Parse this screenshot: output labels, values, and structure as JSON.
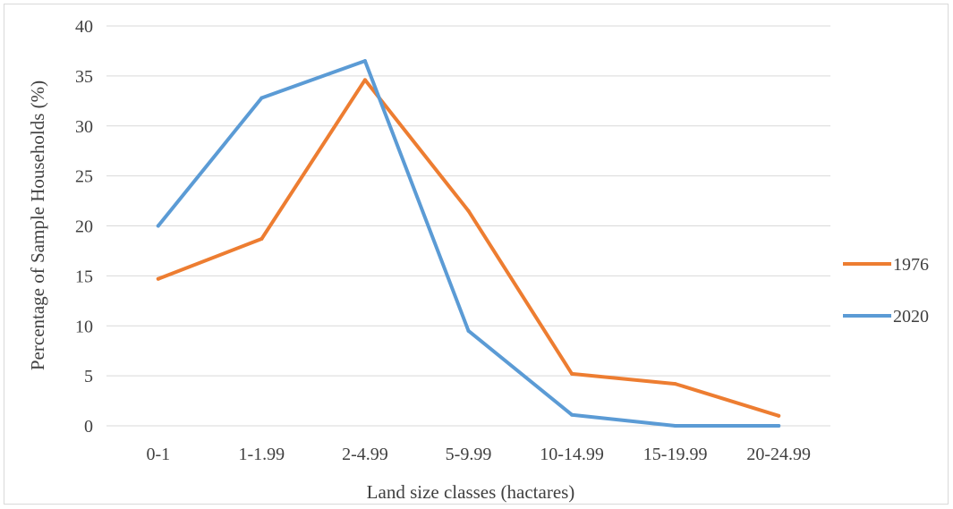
{
  "chart_data": {
    "type": "line",
    "categories": [
      "0-1",
      "1-1.99",
      "2-4.99",
      "5-9.99",
      "10-14.99",
      "15-19.99",
      "20-24.99"
    ],
    "series": [
      {
        "name": "1976",
        "color": "#ED7D31",
        "values": [
          14.7,
          18.7,
          34.6,
          21.5,
          5.2,
          4.2,
          1.0
        ]
      },
      {
        "name": "2020",
        "color": "#5B9BD5",
        "values": [
          20.0,
          32.8,
          36.5,
          9.5,
          1.1,
          0.0,
          0.0
        ]
      }
    ],
    "xlabel": "Land size classes (hactares)",
    "ylabel": "Percentage of Sample Households (%)",
    "ylim": [
      0,
      40
    ],
    "yticks": [
      0,
      5,
      10,
      15,
      20,
      25,
      30,
      35,
      40
    ],
    "grid": true,
    "legend": "right"
  }
}
